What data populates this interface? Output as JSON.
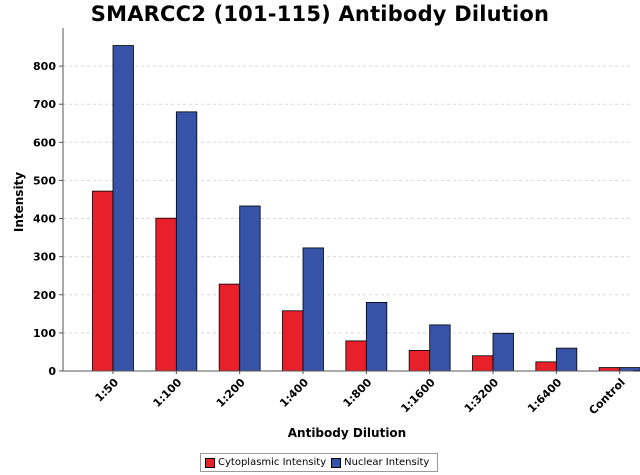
{
  "chart_data": {
    "type": "bar",
    "title": "SMARCC2 (101-115) Antibody Dilution",
    "xlabel": "Antibody Dilution",
    "ylabel": "Intensity",
    "categories": [
      "1:50",
      "1:100",
      "1:200",
      "1:400",
      "1:800",
      "1:1600",
      "1:3200",
      "1:6400",
      "Control"
    ],
    "series": [
      {
        "name": "Cytoplasmic Intensity",
        "color": "#e8202a",
        "values": [
          472,
          401,
          228,
          158,
          79,
          54,
          40,
          24,
          9
        ]
      },
      {
        "name": "Nuclear Intensity",
        "color": "#3753a7",
        "values": [
          854,
          680,
          433,
          323,
          180,
          121,
          99,
          60,
          9
        ]
      }
    ],
    "ylim": [
      0,
      900
    ],
    "yticks": [
      0,
      100,
      200,
      300,
      400,
      500,
      600,
      700,
      800
    ],
    "grid": true,
    "legend_position": "bottom"
  }
}
